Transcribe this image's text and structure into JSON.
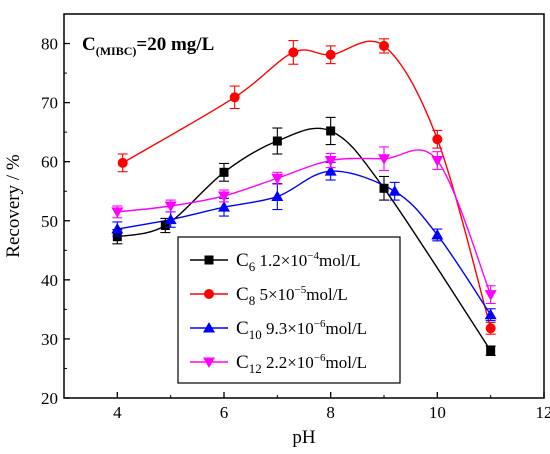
{
  "chart_data": {
    "type": "scatter",
    "xlabel": "pH",
    "ylabel": "Recovery / %",
    "xlim": [
      3,
      12
    ],
    "ylim": [
      20,
      85
    ],
    "xticks": [
      4,
      6,
      8,
      10,
      12
    ],
    "yticks": [
      20,
      30,
      40,
      50,
      60,
      70,
      80
    ],
    "grid": false,
    "legend_position": "bottom-center",
    "annotation": {
      "main": "C",
      "sub": "(MIBC)",
      "rest": "=20 mg/L"
    },
    "series": [
      {
        "name": "C6 1.2×10−4mol/L",
        "legend": {
          "base": "C",
          "sub": "6",
          "pre": " 1.2×10",
          "sup": "−4",
          "post": "mol/L"
        },
        "marker": "square",
        "color": "#000000",
        "x": [
          4.0,
          4.9,
          6.0,
          7.0,
          8.0,
          9.0,
          11.0
        ],
        "y": [
          47.3,
          49.2,
          58.2,
          63.5,
          65.2,
          55.5,
          28.0
        ],
        "error": [
          1.2,
          1.2,
          1.5,
          2.2,
          2.3,
          2.0,
          0.8
        ]
      },
      {
        "name": "C8 5×10−5mol/L",
        "legend": {
          "base": "C",
          "sub": "8",
          "pre": " 5×10",
          "sup": "−5",
          "post": "mol/L"
        },
        "marker": "circle",
        "color": "#ff0000",
        "x": [
          4.1,
          6.2,
          7.3,
          8.0,
          9.0,
          10.0,
          11.0
        ],
        "y": [
          59.8,
          70.9,
          78.5,
          78.1,
          79.6,
          63.8,
          31.8
        ],
        "error": [
          1.5,
          1.9,
          2.0,
          1.5,
          1.2,
          1.5,
          1.0
        ]
      },
      {
        "name": "C10 9.3×10−6mol/L",
        "legend": {
          "base": "C",
          "sub": "10",
          "pre": " 9.3×10",
          "sup": "−6",
          "post": "mol/L"
        },
        "marker": "triangle-up",
        "color": "#0000ff",
        "x": [
          4.0,
          5.0,
          6.0,
          7.0,
          8.0,
          9.2,
          10.0,
          11.0
        ],
        "y": [
          48.6,
          50.2,
          52.3,
          54.1,
          58.4,
          55.0,
          47.6,
          34.1
        ],
        "error": [
          1.2,
          1.3,
          1.5,
          2.2,
          1.5,
          1.5,
          1.0,
          1.0
        ]
      },
      {
        "name": "C12 2.2×10−6mol/L",
        "legend": {
          "base": "C",
          "sub": "12",
          "pre": " 2.2×10",
          "sup": "−6",
          "post": "mol/L"
        },
        "marker": "triangle-down",
        "color": "#ff00ff",
        "x": [
          4.0,
          5.0,
          6.0,
          7.0,
          8.0,
          9.0,
          10.0,
          11.0
        ],
        "y": [
          51.5,
          52.5,
          54.2,
          57.2,
          60.2,
          60.5,
          60.2,
          37.5
        ],
        "error": [
          1.0,
          1.0,
          1.0,
          1.0,
          1.2,
          2.0,
          1.5,
          1.5
        ]
      }
    ]
  }
}
